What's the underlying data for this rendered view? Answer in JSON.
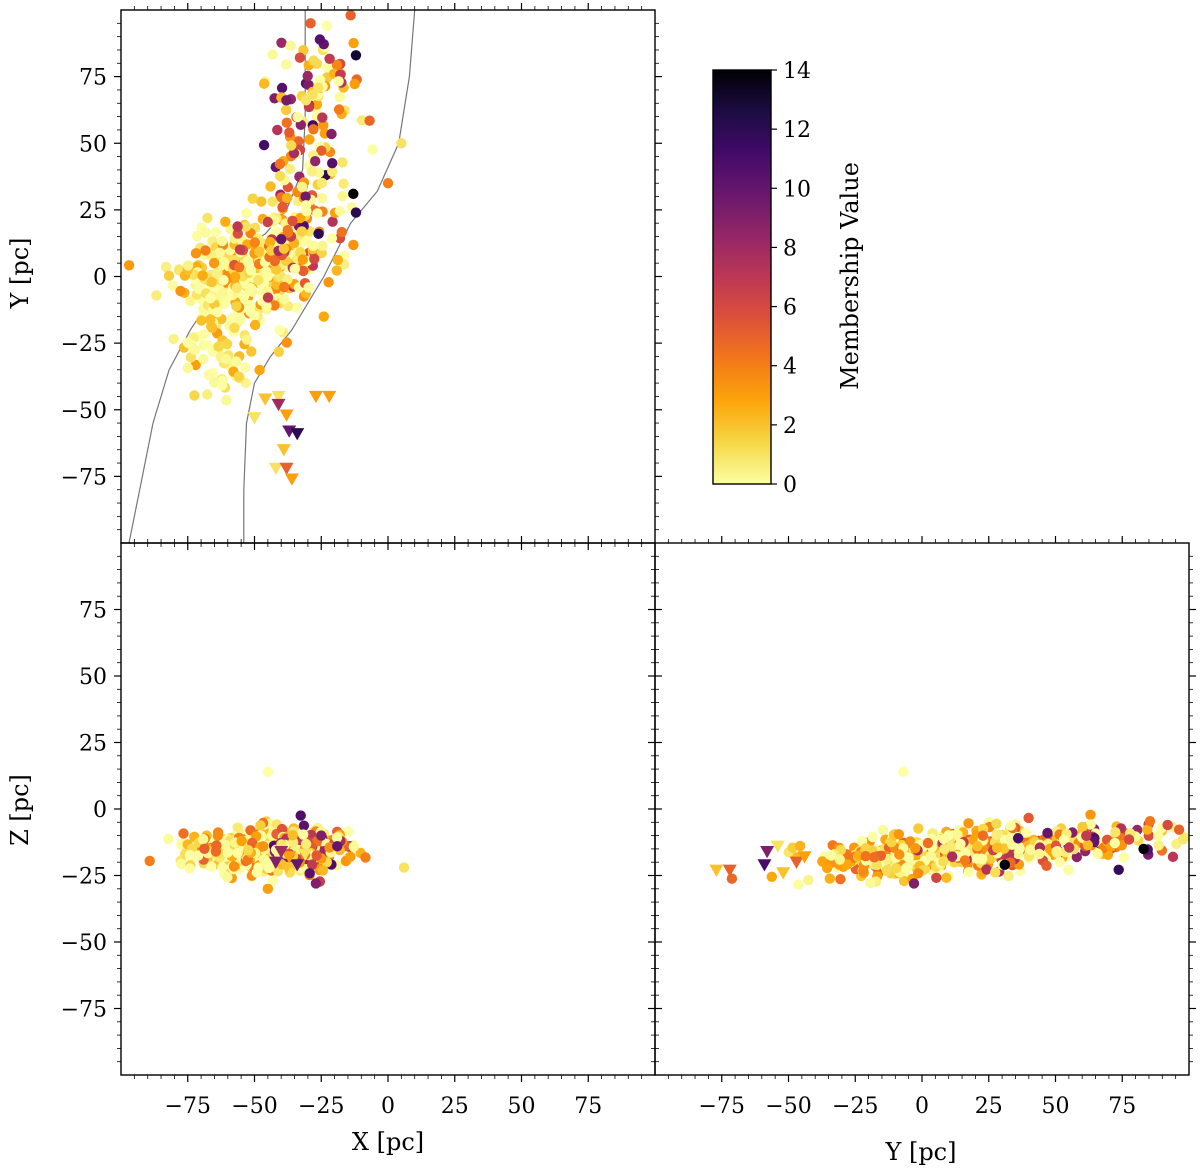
{
  "chart_data": [
    {
      "type": "scatter",
      "panel": "top-left",
      "xlabel": "",
      "ylabel": "Y [pc]",
      "xlim": [
        -100,
        100
      ],
      "ylim": [
        -100,
        100
      ],
      "yticks": [
        "75",
        "50",
        "25",
        "0",
        "−25",
        "−50",
        "−75"
      ],
      "ytick_values": [
        75,
        50,
        25,
        0,
        -25,
        -50,
        -75
      ],
      "show_xtick_labels": false,
      "curves": [
        {
          "name": "boundary-left",
          "points": [
            [
              -97,
              -100
            ],
            [
              -93,
              -80
            ],
            [
              -88,
              -55
            ],
            [
              -82,
              -35
            ],
            [
              -74,
              -20
            ],
            [
              -64,
              -5
            ],
            [
              -55,
              10
            ],
            [
              -46,
              16
            ],
            [
              -38,
              25
            ],
            [
              -32,
              40
            ],
            [
              -31,
              60
            ],
            [
              -31,
              80
            ],
            [
              -31,
              100
            ]
          ]
        },
        {
          "name": "boundary-right",
          "points": [
            [
              -54,
              -100
            ],
            [
              -54,
              -80
            ],
            [
              -53,
              -55
            ],
            [
              -50,
              -40
            ],
            [
              -44,
              -30
            ],
            [
              -36,
              -20
            ],
            [
              -30,
              -10
            ],
            [
              -24,
              0
            ],
            [
              -14,
              20
            ],
            [
              -4,
              32
            ],
            [
              4,
              50
            ],
            [
              8,
              75
            ],
            [
              10,
              100
            ]
          ]
        }
      ],
      "circle_clusters": [
        {
          "cx": -55,
          "cy": 0,
          "sx": 12,
          "sy": 10,
          "n": 260,
          "cmin": 0,
          "cmax": 4
        },
        {
          "cx": -40,
          "cy": 10,
          "sx": 9,
          "sy": 10,
          "n": 120,
          "cmin": 0,
          "cmax": 7
        },
        {
          "cx": -30,
          "cy": 40,
          "sx": 8,
          "sy": 18,
          "n": 120,
          "cmin": 0,
          "cmax": 12
        },
        {
          "cx": -25,
          "cy": 75,
          "sx": 8,
          "sy": 10,
          "n": 50,
          "cmin": 0,
          "cmax": 11
        },
        {
          "cx": -62,
          "cy": -30,
          "sx": 8,
          "sy": 8,
          "n": 60,
          "cmin": 0,
          "cmax": 3
        }
      ],
      "highlight_points": [
        {
          "x": -13,
          "y": 31,
          "c": 14
        },
        {
          "x": -12,
          "y": 24,
          "c": 12
        },
        {
          "x": -12,
          "y": 83,
          "c": 13
        },
        {
          "x": -26,
          "y": 16,
          "c": 12
        },
        {
          "x": -40,
          "y": 14,
          "c": 10
        },
        {
          "x": 5,
          "y": 50,
          "c": 1
        },
        {
          "x": 0,
          "y": 35,
          "c": 4
        },
        {
          "x": -29,
          "y": 95,
          "c": 5
        },
        {
          "x": -14,
          "y": 98,
          "c": 5
        }
      ],
      "triangles": [
        {
          "x": -46,
          "y": -46,
          "c": 2
        },
        {
          "x": -41,
          "y": -45,
          "c": 1
        },
        {
          "x": -27,
          "y": -45,
          "c": 3
        },
        {
          "x": -22,
          "y": -45,
          "c": 3
        },
        {
          "x": -41,
          "y": -48,
          "c": 8
        },
        {
          "x": -38,
          "y": -52,
          "c": 3
        },
        {
          "x": -50,
          "y": -53,
          "c": 1
        },
        {
          "x": -37,
          "y": -58,
          "c": 10
        },
        {
          "x": -34,
          "y": -59,
          "c": 12
        },
        {
          "x": -39,
          "y": -65,
          "c": 2
        },
        {
          "x": -42,
          "y": -72,
          "c": 1
        },
        {
          "x": -38,
          "y": -72,
          "c": 5
        },
        {
          "x": -36,
          "y": -76,
          "c": 3
        }
      ]
    },
    {
      "type": "scatter",
      "panel": "bottom-left",
      "xlabel": "X [pc]",
      "ylabel": "Z [pc]",
      "xlim": [
        -100,
        100
      ],
      "ylim": [
        -100,
        100
      ],
      "xticks": [
        "−75",
        "−50",
        "−25",
        "0",
        "25",
        "50",
        "75"
      ],
      "xtick_values": [
        -75,
        -50,
        -25,
        0,
        25,
        50,
        75
      ],
      "yticks": [
        "75",
        "50",
        "25",
        "0",
        "−25",
        "−50",
        "−75"
      ],
      "ytick_values": [
        75,
        50,
        25,
        0,
        -25,
        -50,
        -75
      ],
      "circle_clusters": [
        {
          "cx": -50,
          "cy": -16,
          "sx": 12,
          "sy": 4,
          "n": 420,
          "cmin": 0,
          "cmax": 5
        },
        {
          "cx": -30,
          "cy": -15,
          "sx": 8,
          "sy": 4,
          "n": 160,
          "cmin": 0,
          "cmax": 11
        }
      ],
      "highlight_points": [
        {
          "x": -45,
          "y": 14,
          "c": 0
        },
        {
          "x": 6,
          "y": -22,
          "c": 1
        },
        {
          "x": -45,
          "y": -30,
          "c": 3
        },
        {
          "x": -27,
          "y": -28,
          "c": 9
        },
        {
          "x": -25,
          "y": -10,
          "c": 9
        },
        {
          "x": -19,
          "y": -14,
          "c": 10
        }
      ],
      "triangles": [
        {
          "x": -42,
          "y": -20,
          "c": 9
        },
        {
          "x": -38,
          "y": -22,
          "c": 2
        },
        {
          "x": -34,
          "y": -21,
          "c": 10
        },
        {
          "x": -37,
          "y": -18,
          "c": 3
        },
        {
          "x": -31,
          "y": -17,
          "c": 1
        },
        {
          "x": -40,
          "y": -16,
          "c": 8
        }
      ]
    },
    {
      "type": "scatter",
      "panel": "bottom-right",
      "xlabel": "Y [pc]",
      "ylabel": "",
      "xlim": [
        -100,
        100
      ],
      "ylim": [
        -100,
        100
      ],
      "xticks": [
        "−75",
        "−50",
        "−25",
        "0",
        "25",
        "50",
        "75"
      ],
      "xtick_values": [
        -75,
        -50,
        -25,
        0,
        25,
        50,
        75
      ],
      "show_ytick_labels": false,
      "trend": {
        "slope": 0.08,
        "intercept": -17
      },
      "circle_clusters": [
        {
          "cx": -5,
          "cy": 0,
          "sx": 16,
          "sy": 4,
          "n": 300,
          "cmin": 0,
          "cmax": 5
        },
        {
          "cx": 25,
          "cy": 0,
          "sx": 14,
          "sy": 4,
          "n": 160,
          "cmin": 0,
          "cmax": 8
        },
        {
          "cx": 65,
          "cy": 0,
          "sx": 14,
          "sy": 3.5,
          "n": 120,
          "cmin": 0,
          "cmax": 12
        }
      ],
      "highlight_points": [
        {
          "x": -7,
          "y": 14,
          "c": 0
        },
        {
          "x": 83,
          "y": -15,
          "c": 14
        },
        {
          "x": 31,
          "y": -21,
          "c": 14
        },
        {
          "x": 36,
          "y": -11,
          "c": 11
        },
        {
          "x": 92,
          "y": -6,
          "c": 6
        },
        {
          "x": 94,
          "y": -18,
          "c": 7
        },
        {
          "x": 47,
          "y": -9,
          "c": 10
        },
        {
          "x": -3,
          "y": -28,
          "c": 9
        }
      ],
      "triangles": [
        {
          "x": -77,
          "y": -23,
          "c": 2
        },
        {
          "x": -72,
          "y": -23,
          "c": 5
        },
        {
          "x": -59,
          "y": -21,
          "c": 11
        },
        {
          "x": -58,
          "y": -16,
          "c": 9
        },
        {
          "x": -52,
          "y": -24,
          "c": 2
        },
        {
          "x": -54,
          "y": -14,
          "c": 1
        },
        {
          "x": -47,
          "y": -20,
          "c": 5
        },
        {
          "x": -44,
          "y": -18,
          "c": 3
        }
      ]
    }
  ],
  "colorbar": {
    "label": "Membership Value",
    "min": 0,
    "max": 14,
    "ticks": [
      "0",
      "2",
      "4",
      "6",
      "8",
      "10",
      "12",
      "14"
    ],
    "tick_values": [
      0,
      2,
      4,
      6,
      8,
      10,
      12,
      14
    ],
    "colormap": "inferno_r",
    "stops": [
      "#fcffa4",
      "#f6d746",
      "#fca50a",
      "#f37819",
      "#dd513a",
      "#bc3754",
      "#932667",
      "#6a176e",
      "#420a68",
      "#1c0c43",
      "#000004"
    ]
  }
}
